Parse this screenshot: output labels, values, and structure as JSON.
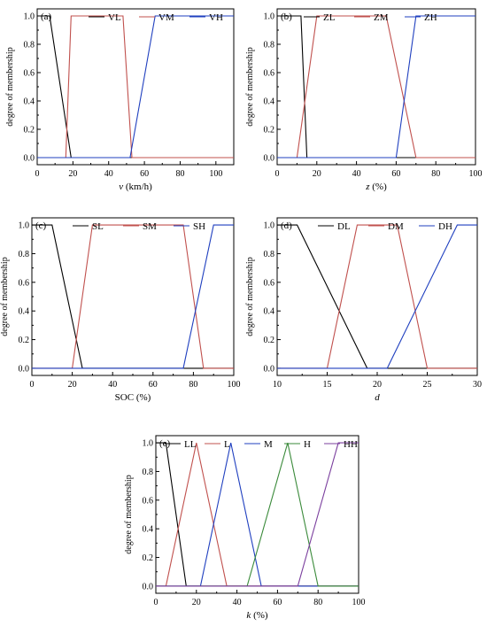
{
  "colors": {
    "black": "#000000",
    "red": "#c0504d",
    "blue": "#1f3fbf",
    "green": "#3a8a3a",
    "purple": "#7b3f9e"
  },
  "chart_data": [
    {
      "id": "a",
      "type": "line",
      "panel_label": "(a)",
      "xlabel_italic": "v",
      "xlabel_rest": " (km/h)",
      "ylabel": "degree of membership",
      "xlim": [
        0,
        110
      ],
      "ylim": [
        -0.05,
        1.05
      ],
      "xticks": [
        0,
        20,
        40,
        60,
        80,
        100
      ],
      "yticks": [
        "0.0",
        "0.2",
        "0.4",
        "0.6",
        "0.8",
        "1.0"
      ],
      "legend_placement": "top",
      "series": [
        {
          "name": "VL",
          "color": "#000000",
          "points": [
            [
              0,
              1
            ],
            [
              7,
              1
            ],
            [
              19,
              0
            ],
            [
              110,
              0
            ]
          ]
        },
        {
          "name": "VM",
          "color": "#c0504d",
          "points": [
            [
              0,
              0
            ],
            [
              16,
              0
            ],
            [
              19,
              1
            ],
            [
              48,
              1
            ],
            [
              53,
              0
            ],
            [
              110,
              0
            ]
          ]
        },
        {
          "name": "VH",
          "color": "#1f3fbf",
          "points": [
            [
              0,
              0
            ],
            [
              52,
              0
            ],
            [
              66,
              1
            ],
            [
              110,
              1
            ]
          ]
        }
      ]
    },
    {
      "id": "b",
      "type": "line",
      "panel_label": "(b)",
      "xlabel_italic": "z",
      "xlabel_rest": " (%)",
      "ylabel": "degree of membership",
      "xlim": [
        0,
        100
      ],
      "ylim": [
        -0.05,
        1.05
      ],
      "xticks": [
        0,
        20,
        40,
        60,
        80,
        100
      ],
      "yticks": [
        "0.0",
        "0.2",
        "0.4",
        "0.6",
        "0.8",
        "1.0"
      ],
      "legend_placement": "top",
      "series": [
        {
          "name": "ZL",
          "color": "#000000",
          "points": [
            [
              0,
              1
            ],
            [
              12,
              1
            ],
            [
              15,
              0
            ],
            [
              100,
              0
            ]
          ]
        },
        {
          "name": "ZM",
          "color": "#c0504d",
          "points": [
            [
              0,
              0
            ],
            [
              10,
              0
            ],
            [
              20,
              1
            ],
            [
              55,
              1
            ],
            [
              70,
              0
            ],
            [
              100,
              0
            ]
          ]
        },
        {
          "name": "ZH",
          "color": "#1f3fbf",
          "points": [
            [
              0,
              0
            ],
            [
              60,
              0
            ],
            [
              70,
              1
            ],
            [
              100,
              1
            ]
          ]
        }
      ]
    },
    {
      "id": "c",
      "type": "line",
      "panel_label": "(c)",
      "xlabel_italic": "",
      "xlabel_rest": "SOC (%)",
      "ylabel": "degree of membership",
      "xlim": [
        0,
        100
      ],
      "ylim": [
        -0.05,
        1.05
      ],
      "xticks": [
        0,
        20,
        40,
        60,
        80,
        100
      ],
      "yticks": [
        "0.0",
        "0.2",
        "0.4",
        "0.6",
        "0.8",
        "1.0"
      ],
      "legend_placement": "top",
      "series": [
        {
          "name": "SL",
          "color": "#000000",
          "points": [
            [
              0,
              1
            ],
            [
              10,
              1
            ],
            [
              25,
              0
            ],
            [
              100,
              0
            ]
          ]
        },
        {
          "name": "SM",
          "color": "#c0504d",
          "points": [
            [
              0,
              0
            ],
            [
              20,
              0
            ],
            [
              30,
              1
            ],
            [
              75,
              1
            ],
            [
              85,
              0
            ],
            [
              100,
              0
            ]
          ]
        },
        {
          "name": "SH",
          "color": "#1f3fbf",
          "points": [
            [
              0,
              0
            ],
            [
              75,
              0
            ],
            [
              90,
              1
            ],
            [
              100,
              1
            ]
          ]
        }
      ]
    },
    {
      "id": "d",
      "type": "line",
      "panel_label": "(d)",
      "xlabel_italic": "d",
      "xlabel_rest": "",
      "ylabel": "degree of membership",
      "xlim": [
        10,
        30
      ],
      "ylim": [
        -0.05,
        1.05
      ],
      "xticks": [
        10,
        15,
        20,
        25,
        30
      ],
      "yticks": [
        "0.0",
        "0.2",
        "0.4",
        "0.6",
        "0.8",
        "1.0"
      ],
      "legend_placement": "top",
      "series": [
        {
          "name": "DL",
          "color": "#000000",
          "points": [
            [
              10,
              1
            ],
            [
              12,
              1
            ],
            [
              19,
              0
            ],
            [
              30,
              0
            ]
          ]
        },
        {
          "name": "DM",
          "color": "#c0504d",
          "points": [
            [
              10,
              0
            ],
            [
              15,
              0
            ],
            [
              18,
              1
            ],
            [
              22,
              1
            ],
            [
              25,
              0
            ],
            [
              30,
              0
            ]
          ]
        },
        {
          "name": "DH",
          "color": "#1f3fbf",
          "points": [
            [
              10,
              0
            ],
            [
              21,
              0
            ],
            [
              28,
              1
            ],
            [
              30,
              1
            ]
          ]
        }
      ]
    },
    {
      "id": "e",
      "type": "line",
      "panel_label": "(e)",
      "xlabel_italic": "k",
      "xlabel_rest": " (%)",
      "ylabel": "degree of membership",
      "xlim": [
        0,
        100
      ],
      "ylim": [
        -0.05,
        1.05
      ],
      "xticks": [
        0,
        20,
        40,
        60,
        80,
        100
      ],
      "yticks": [
        "0.0",
        "0.2",
        "0.4",
        "0.6",
        "0.8",
        "1.0"
      ],
      "legend_placement": "top",
      "series": [
        {
          "name": "LL",
          "color": "#000000",
          "points": [
            [
              0,
              1
            ],
            [
              5,
              1
            ],
            [
              15,
              0
            ],
            [
              100,
              0
            ]
          ]
        },
        {
          "name": "L",
          "color": "#c0504d",
          "points": [
            [
              0,
              0
            ],
            [
              5,
              0
            ],
            [
              20,
              1
            ],
            [
              35,
              0
            ],
            [
              100,
              0
            ]
          ]
        },
        {
          "name": "M",
          "color": "#1f3fbf",
          "points": [
            [
              0,
              0
            ],
            [
              22,
              0
            ],
            [
              37,
              1
            ],
            [
              52,
              0
            ],
            [
              100,
              0
            ]
          ]
        },
        {
          "name": "H",
          "color": "#3a8a3a",
          "points": [
            [
              0,
              0
            ],
            [
              45,
              0
            ],
            [
              65,
              1
            ],
            [
              80,
              0
            ],
            [
              100,
              0
            ]
          ]
        },
        {
          "name": "HH",
          "color": "#7b3f9e",
          "points": [
            [
              0,
              0
            ],
            [
              70,
              0
            ],
            [
              90,
              1
            ],
            [
              100,
              1
            ]
          ]
        }
      ]
    }
  ]
}
